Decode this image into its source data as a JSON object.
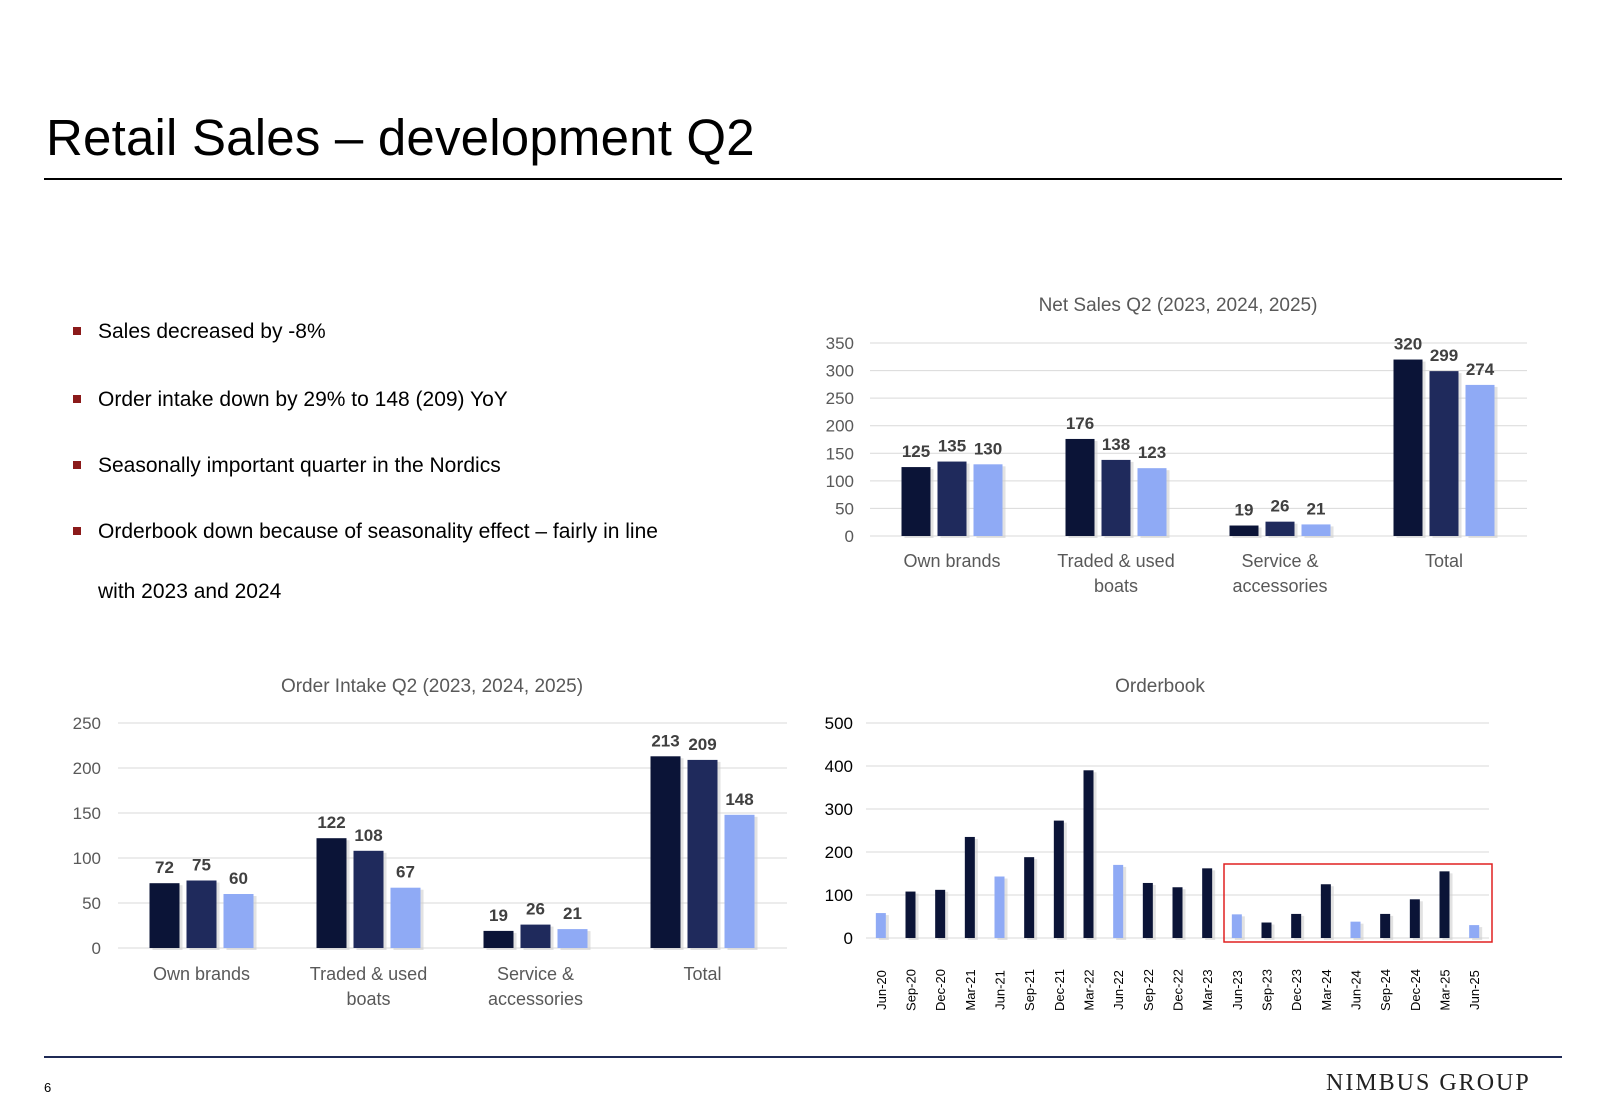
{
  "title": "Retail Sales – development Q2",
  "bullets": [
    "Sales decreased by -8%",
    "Order intake down by 29% to 148 (209) YoY",
    "Seasonally important quarter in the Nordics",
    "Orderbook down because of seasonality effect – fairly in line",
    "with 2023 and 2024"
  ],
  "footer": {
    "page_number": "6",
    "logo_text": "NIMBUS GROUP"
  },
  "colors": {
    "y2023": "#0b1437",
    "y2024": "#1f2a5c",
    "y2025": "#8faaf5",
    "grid": "#d9d9d9",
    "highlight": "#e02020"
  },
  "chart_data": [
    {
      "id": "net-sales",
      "type": "bar",
      "title": "Net Sales Q2 (2023, 2024, 2025)",
      "categories": [
        [
          "Own brands"
        ],
        [
          "Traded & used",
          "boats"
        ],
        [
          "Service &",
          "accessories"
        ],
        [
          "Total"
        ]
      ],
      "series": [
        {
          "name": "2023",
          "values": [
            125,
            176,
            19,
            320
          ]
        },
        {
          "name": "2024",
          "values": [
            135,
            138,
            26,
            299
          ]
        },
        {
          "name": "2025",
          "values": [
            130,
            123,
            21,
            274
          ]
        }
      ],
      "ylim": [
        0,
        350
      ],
      "yticks": [
        0,
        50,
        100,
        150,
        200,
        250,
        300,
        350
      ],
      "xlabel": "",
      "ylabel": "",
      "legend": "none",
      "grid": true
    },
    {
      "id": "order-intake",
      "type": "bar",
      "title": "Order Intake Q2 (2023, 2024, 2025)",
      "categories": [
        [
          "Own brands"
        ],
        [
          "Traded & used",
          "boats"
        ],
        [
          "Service &",
          "accessories"
        ],
        [
          "Total"
        ]
      ],
      "series": [
        {
          "name": "2023",
          "values": [
            72,
            122,
            19,
            213
          ]
        },
        {
          "name": "2024",
          "values": [
            75,
            108,
            26,
            209
          ]
        },
        {
          "name": "2025",
          "values": [
            60,
            67,
            21,
            148
          ]
        }
      ],
      "ylim": [
        0,
        250
      ],
      "yticks": [
        0,
        50,
        100,
        150,
        200,
        250
      ],
      "xlabel": "",
      "ylabel": "",
      "legend": "none",
      "grid": true
    },
    {
      "id": "orderbook",
      "type": "bar",
      "title": "Orderbook",
      "categories": [
        "Jun-20",
        "Sep-20",
        "Dec-20",
        "Mar-21",
        "Jun-21",
        "Sep-21",
        "Dec-21",
        "Mar-22",
        "Jun-22",
        "Sep-22",
        "Dec-22",
        "Mar-23",
        "Jun-23",
        "Sep-23",
        "Dec-23",
        "Mar-24",
        "Jun-24",
        "Sep-24",
        "Dec-24",
        "Mar-25",
        "Jun-25"
      ],
      "values": [
        58,
        108,
        112,
        235,
        143,
        188,
        273,
        390,
        170,
        128,
        118,
        162,
        55,
        36,
        56,
        125,
        38,
        56,
        90,
        155,
        30
      ],
      "highlight": [
        true,
        false,
        false,
        false,
        true,
        false,
        false,
        false,
        true,
        false,
        false,
        false,
        true,
        false,
        false,
        false,
        true,
        false,
        false,
        false,
        true
      ],
      "highlight_range": [
        "Jun-23",
        "Jun-25"
      ],
      "ylim": [
        0,
        500
      ],
      "yticks": [
        0,
        100,
        200,
        300,
        400,
        500
      ],
      "xlabel": "",
      "ylabel": "",
      "legend": "none",
      "grid": true
    }
  ]
}
